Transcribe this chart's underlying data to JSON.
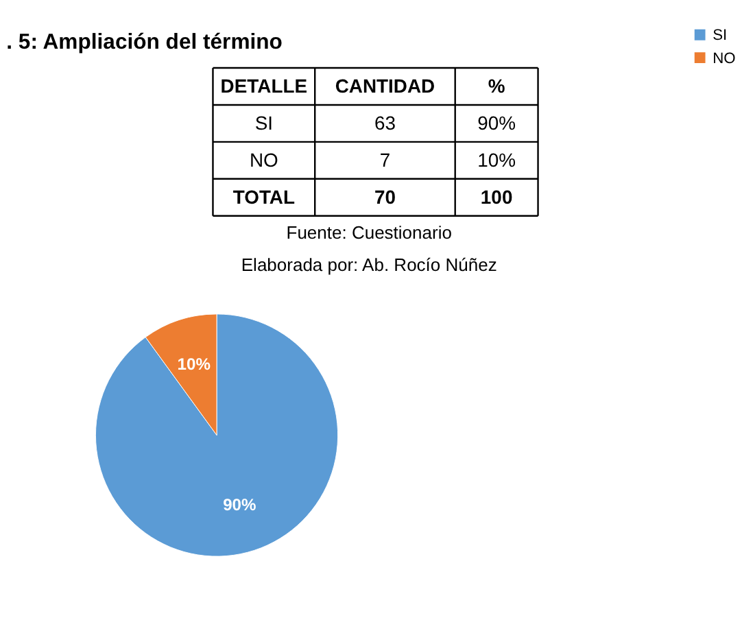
{
  "chart_data": [
    {
      "type": "other",
      "title": ". 5: Ampliación del término",
      "annotations": [
        "DETALLE",
        "CANTIDAD",
        "%",
        "SI",
        "63",
        "90%",
        "NO",
        "7",
        "10%",
        "TOTAL",
        "70",
        "100",
        "Fuente: Cuestionario",
        "Elaborada por: Ab. Rocío Núñez"
      ]
    },
    {
      "type": "pie",
      "categories": [
        "SI",
        "NO"
      ],
      "values": [
        90,
        10
      ],
      "colors": [
        "#5b9bd5",
        "#ed7d31"
      ],
      "value_labels": [
        "90%",
        "10%"
      ],
      "legend": "right"
    }
  ]
}
